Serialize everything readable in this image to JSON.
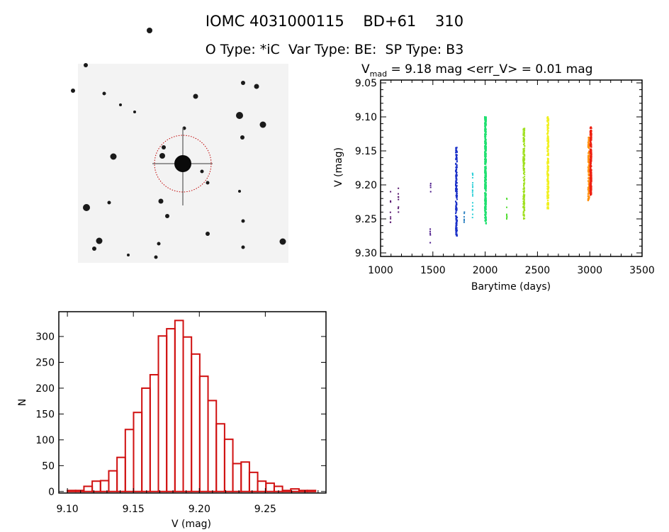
{
  "header": {
    "title": "IOMC 4031000115    BD+61    310",
    "subtitle": "O Type: *iC  Var Type: BE:  SP Type: B3"
  },
  "colors": {
    "histogram": "#d01010",
    "circle": "#c00000"
  },
  "chart_data": [
    {
      "type": "image",
      "name": "finder-chart",
      "description_marks": "sky image with target circle"
    },
    {
      "type": "scatter",
      "title_prefix": "V",
      "title_sub": "mad",
      "title_rest": " = 9.18 mag <err_V> = 0.01 mag",
      "xlabel": "Barytime (days)",
      "ylabel": "V (mag)",
      "xlim": [
        1000,
        3500
      ],
      "ylim": [
        9.3,
        9.05
      ],
      "xticks": [
        "1000",
        "1500",
        "2000",
        "2500",
        "3000",
        "3500"
      ],
      "yticks": [
        "9.05",
        "9.10",
        "9.15",
        "9.20",
        "9.25",
        "9.30"
      ],
      "clusters": [
        {
          "day": 1095,
          "vmin": 9.21,
          "vmax": 9.255,
          "n": 8,
          "color": "#5a1a70"
        },
        {
          "day": 1170,
          "vmin": 9.205,
          "vmax": 9.24,
          "n": 8,
          "color": "#5a1a70"
        },
        {
          "day": 1475,
          "vmin": 9.265,
          "vmax": 9.285,
          "n": 5,
          "color": "#4b1a8a"
        },
        {
          "day": 1478,
          "vmin": 9.198,
          "vmax": 9.21,
          "n": 4,
          "color": "#4b1a8a"
        },
        {
          "day": 1725,
          "vmin": 9.145,
          "vmax": 9.275,
          "n": 200,
          "color": "#1a30c8"
        },
        {
          "day": 1800,
          "vmin": 9.24,
          "vmax": 9.255,
          "n": 6,
          "color": "#2a80c0"
        },
        {
          "day": 1880,
          "vmin": 9.183,
          "vmax": 9.248,
          "n": 20,
          "color": "#30d0d8"
        },
        {
          "day": 2003,
          "vmin": 9.1,
          "vmax": 9.257,
          "n": 400,
          "color": "#20e070"
        },
        {
          "day": 2207,
          "vmin": 9.22,
          "vmax": 9.25,
          "n": 8,
          "color": "#50dd30"
        },
        {
          "day": 2370,
          "vmin": 9.117,
          "vmax": 9.25,
          "n": 200,
          "color": "#a0e020"
        },
        {
          "day": 2600,
          "vmin": 9.1,
          "vmax": 9.235,
          "n": 250,
          "color": "#f0f020"
        },
        {
          "day": 2990,
          "vmin": 9.13,
          "vmax": 9.223,
          "n": 150,
          "color": "#ff9010"
        },
        {
          "day": 3010,
          "vmin": 9.115,
          "vmax": 9.215,
          "n": 300,
          "color": "#ee2010"
        }
      ]
    },
    {
      "type": "bar",
      "name": "histogram",
      "xlabel": "V (mag)",
      "ylabel": "N",
      "xlim": [
        9.0935,
        9.296
      ],
      "ylim": [
        -3,
        348
      ],
      "bin_start": 9.1,
      "bin_width": 0.00627,
      "values": [
        2,
        2,
        10,
        20,
        21,
        40,
        66,
        120,
        153,
        200,
        226,
        301,
        315,
        331,
        299,
        266,
        223,
        176,
        131,
        101,
        54,
        57,
        37,
        20,
        16,
        10,
        2,
        5,
        2,
        2
      ],
      "xticks": [
        "9.10",
        "9.15",
        "9.20",
        "9.25"
      ],
      "yticks": [
        "0",
        "50",
        "100",
        "150",
        "200",
        "250",
        "300"
      ]
    }
  ]
}
